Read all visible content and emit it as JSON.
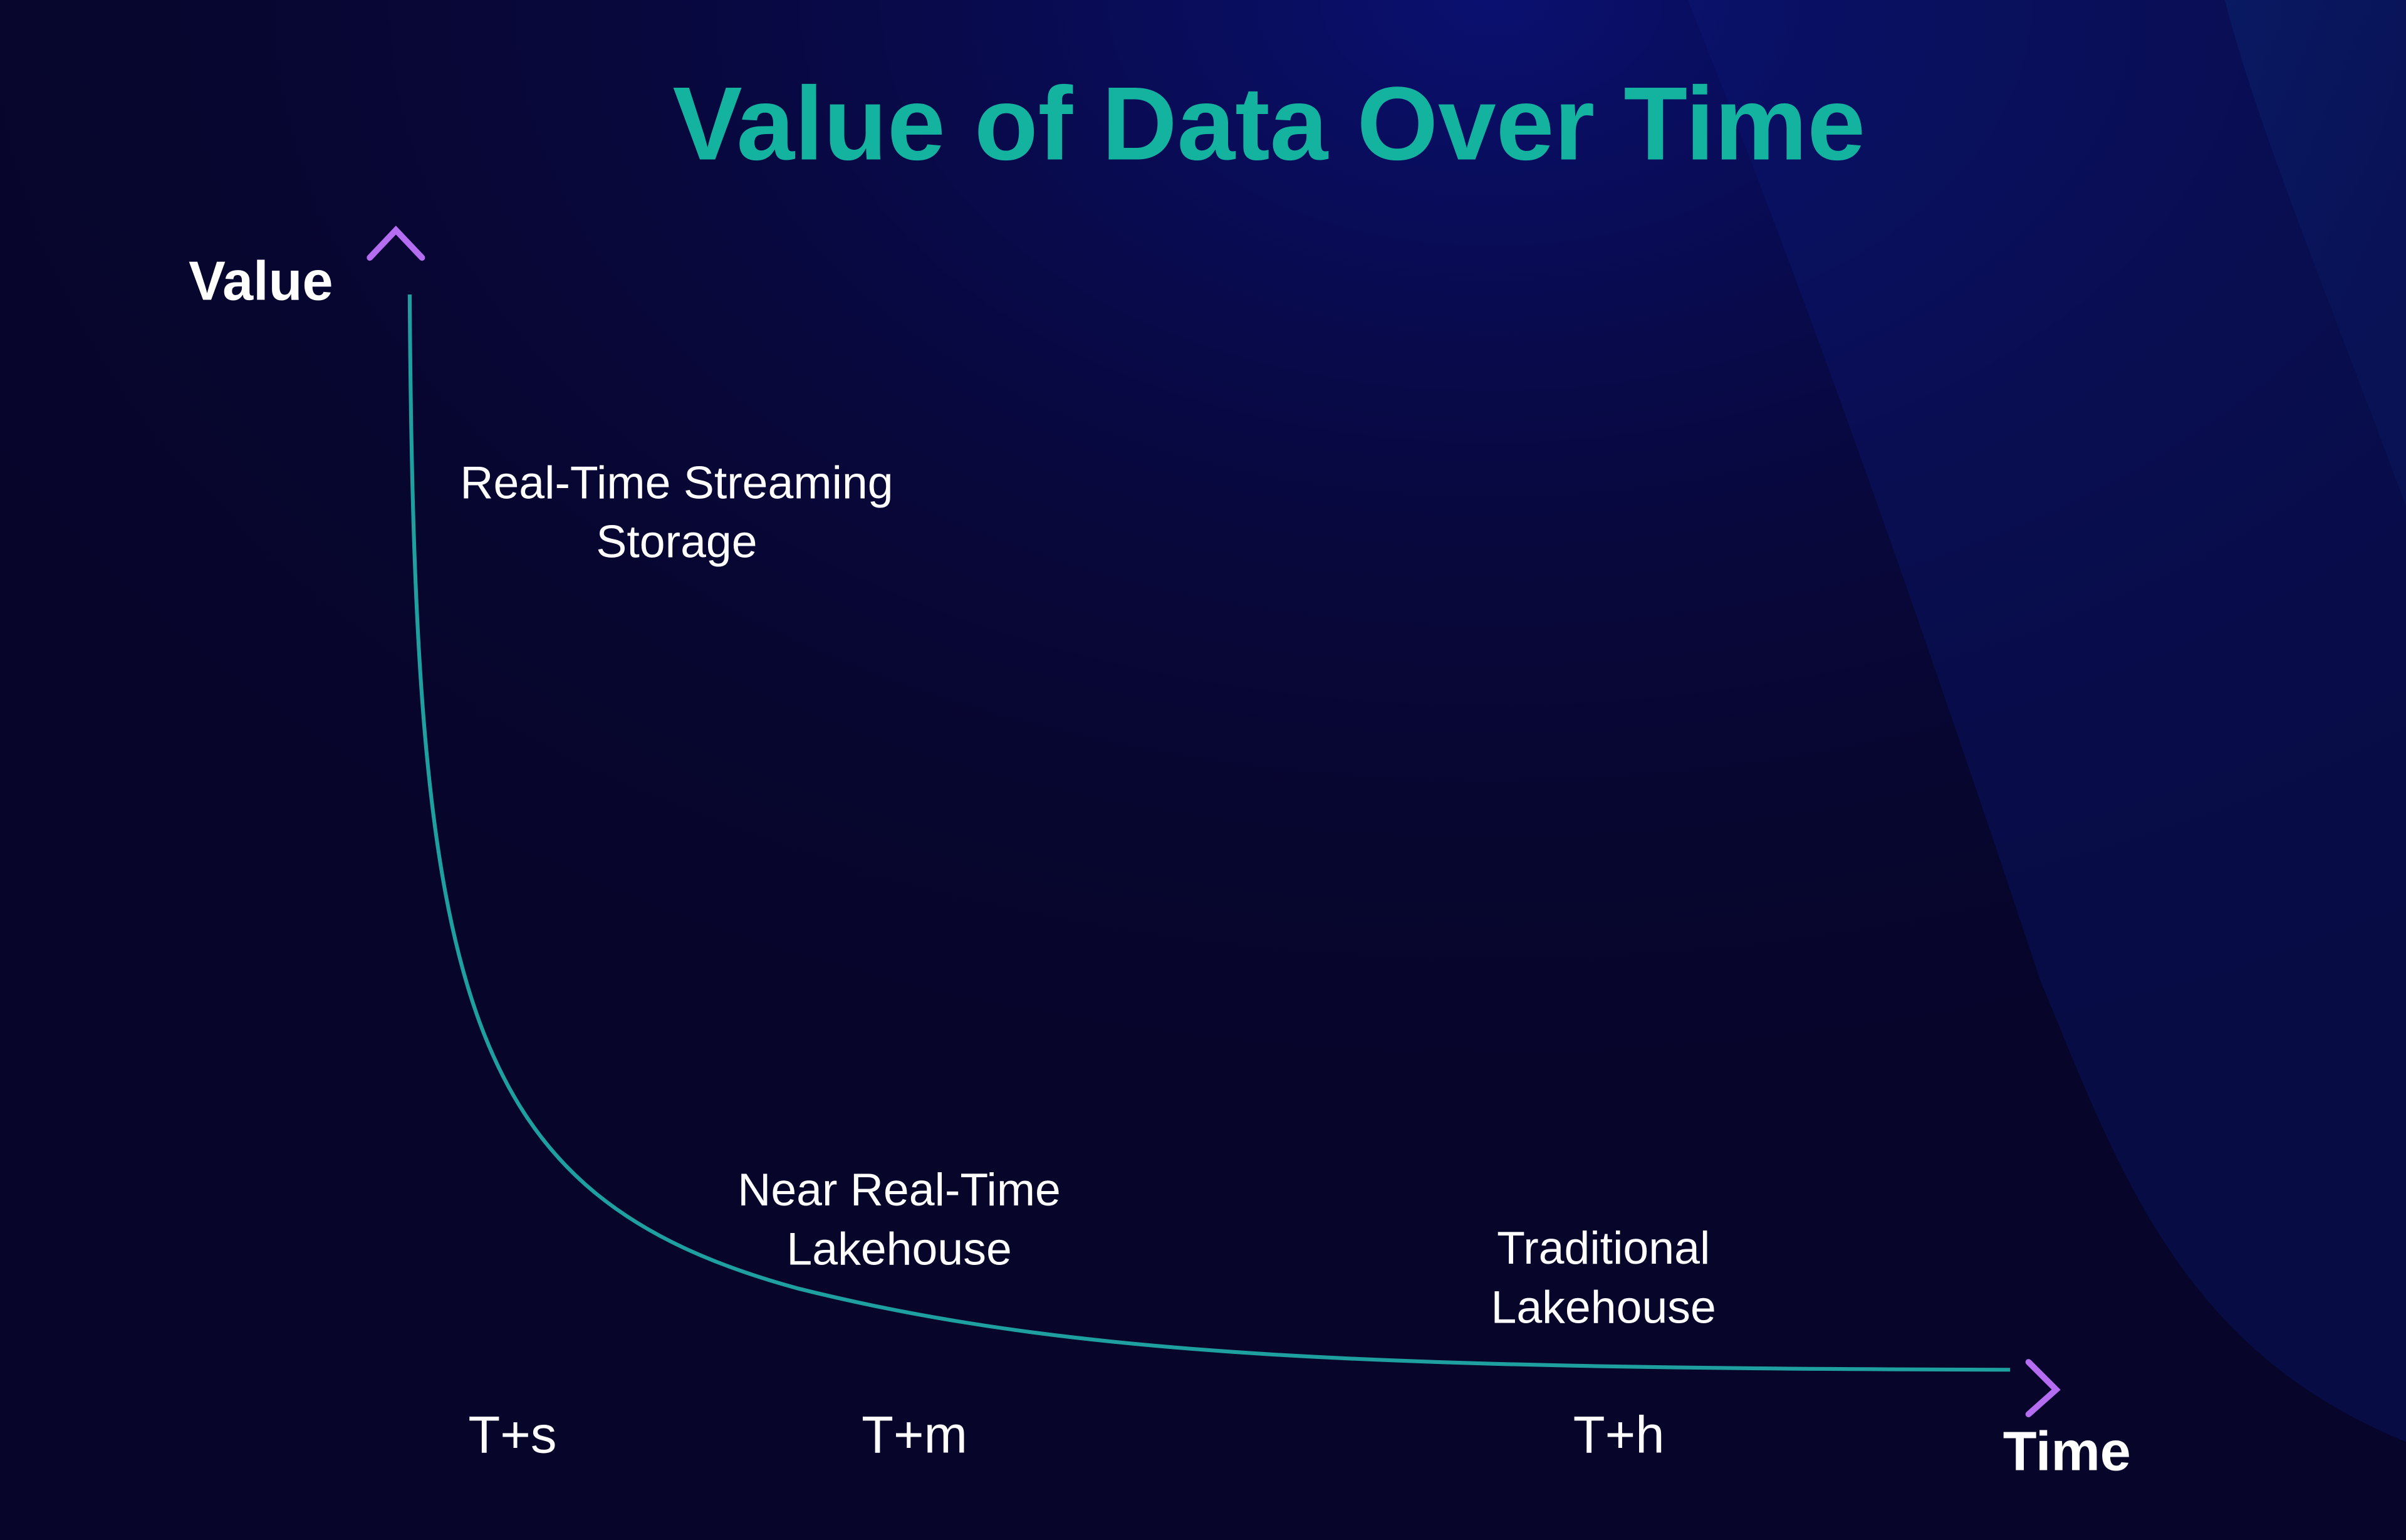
{
  "title": "Value of Data Over Time",
  "axes": {
    "y_label": "Value",
    "x_label": "Time"
  },
  "time_marks": [
    "T+s",
    "T+m",
    "T+h"
  ],
  "annotations": [
    {
      "lines": [
        "Real-Time Streaming",
        "Storage"
      ]
    },
    {
      "lines": [
        "Near Real-Time",
        "Lakehouse"
      ]
    },
    {
      "lines": [
        "Traditional",
        "Lakehouse"
      ]
    }
  ]
}
